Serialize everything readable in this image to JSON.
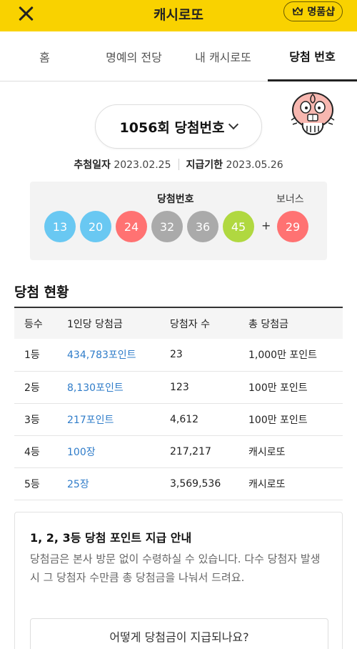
{
  "header": {
    "title": "캐시로또",
    "shop_label": "명품샵",
    "bg_color": "#f9d200"
  },
  "tabs": [
    {
      "label": "홈",
      "active": false
    },
    {
      "label": "명예의 전당",
      "active": false
    },
    {
      "label": "내 캐시로또",
      "active": false
    },
    {
      "label": "당첨 번호",
      "active": true
    }
  ],
  "round": {
    "label": "1056회 당첨번호"
  },
  "dates": {
    "draw_label": "추첨일자",
    "draw_date": "2023.02.25",
    "pay_label": "지급기한",
    "pay_date": "2023.05.26"
  },
  "winning": {
    "title": "당첨번호",
    "bonus_title": "보너스",
    "plus": "+",
    "balls": [
      {
        "number": "13",
        "color": "#69c8f2"
      },
      {
        "number": "20",
        "color": "#69c8f2"
      },
      {
        "number": "24",
        "color": "#ff7272"
      },
      {
        "number": "32",
        "color": "#aaaaaa"
      },
      {
        "number": "36",
        "color": "#aaaaaa"
      },
      {
        "number": "45",
        "color": "#b0d840"
      }
    ],
    "bonus": {
      "number": "29",
      "color": "#ff7272"
    }
  },
  "status": {
    "title": "당첨 현황",
    "headers": [
      "등수",
      "1인당 당첨금",
      "당첨자 수",
      "총 당첨금"
    ],
    "rows": [
      [
        "1등",
        "434,783포인트",
        "23",
        "1,000만 포인트"
      ],
      [
        "2등",
        "8,130포인트",
        "123",
        "100만 포인트"
      ],
      [
        "3등",
        "217포인트",
        "4,612",
        "100만 포인트"
      ],
      [
        "4등",
        "100장",
        "217,217",
        "캐시로또"
      ],
      [
        "5등",
        "25장",
        "3,569,536",
        "캐시로또"
      ]
    ]
  },
  "notice": {
    "title": "1, 2, 3등 당첨 포인트 지급 안내",
    "body": "당첨금은 본사 방문 없이 수령하실 수 있습니다. 다수 당첨자 발생 시 그 당첨자 수만큼 총 당첨금을 나눠서 드려요.",
    "button_label": "어떻게 당첨금이 지급되나요?"
  }
}
